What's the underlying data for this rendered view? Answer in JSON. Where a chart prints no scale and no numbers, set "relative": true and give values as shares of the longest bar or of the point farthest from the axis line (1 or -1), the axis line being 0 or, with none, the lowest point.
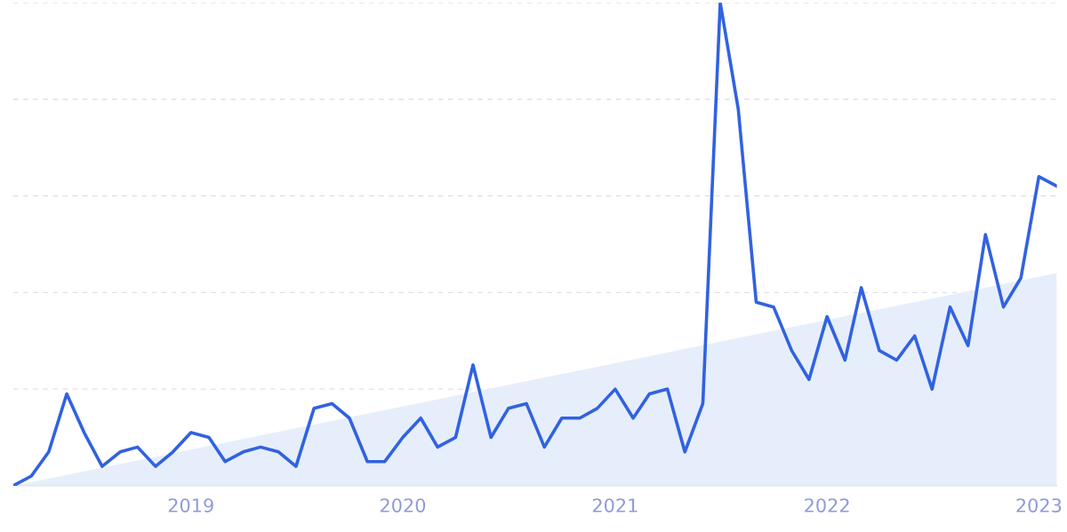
{
  "chart_data": {
    "type": "line",
    "relative": true,
    "grid": "y",
    "tick_labels": "x",
    "xlim": [
      "2018-03",
      "2023-02"
    ],
    "xticks": [
      "2019",
      "2020",
      "2021",
      "2022",
      "2023"
    ],
    "series": [
      {
        "type": "area",
        "color": "#e6eefb",
        "x": [
          "2018-03",
          "2023-02"
        ],
        "values": [
          0,
          0.44
        ]
      },
      {
        "color": "#3162e0",
        "x": [
          "2018-03",
          "2018-04",
          "2018-05",
          "2018-06",
          "2018-07",
          "2018-08",
          "2018-09",
          "2018-10",
          "2018-11",
          "2018-12",
          "2019-01",
          "2019-02",
          "2019-03",
          "2019-04",
          "2019-05",
          "2019-06",
          "2019-07",
          "2019-08",
          "2019-09",
          "2019-10",
          "2019-11",
          "2019-12",
          "2020-01",
          "2020-02",
          "2020-03",
          "2020-04",
          "2020-05",
          "2020-06",
          "2020-07",
          "2020-08",
          "2020-09",
          "2020-10",
          "2020-11",
          "2020-12",
          "2021-01",
          "2021-02",
          "2021-03",
          "2021-04",
          "2021-05",
          "2021-06",
          "2021-07",
          "2021-08",
          "2021-09",
          "2021-10",
          "2021-11",
          "2021-12",
          "2022-01",
          "2022-02",
          "2022-03",
          "2022-04",
          "2022-05",
          "2022-06",
          "2022-07",
          "2022-08",
          "2022-09",
          "2022-10",
          "2022-11",
          "2022-12",
          "2023-01",
          "2023-02"
        ],
        "values": [
          0,
          0.02,
          0.07,
          0.19,
          0.11,
          0.04,
          0.07,
          0.08,
          0.04,
          0.07,
          0.11,
          0.1,
          0.05,
          0.07,
          0.08,
          0.07,
          0.04,
          0.16,
          0.17,
          0.14,
          0.05,
          0.05,
          0.1,
          0.14,
          0.08,
          0.1,
          0.25,
          0.1,
          0.16,
          0.17,
          0.08,
          0.14,
          0.14,
          0.16,
          0.2,
          0.14,
          0.19,
          0.2,
          0.07,
          0.17,
          1,
          0.78,
          0.38,
          0.37,
          0.28,
          0.22,
          0.35,
          0.26,
          0.41,
          0.28,
          0.26,
          0.31,
          0.2,
          0.37,
          0.29,
          0.52,
          0.37,
          0.43,
          0.64,
          0.62
        ]
      }
    ]
  }
}
